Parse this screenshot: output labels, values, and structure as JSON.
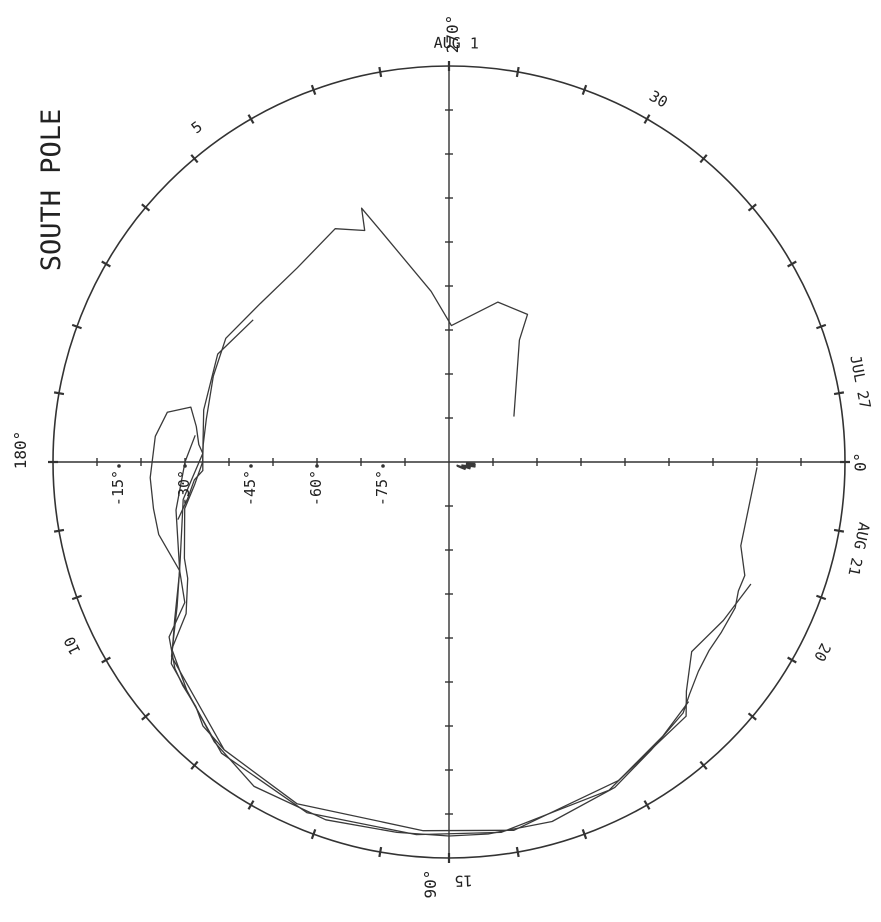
{
  "chart_data": {
    "type": "scatter",
    "title": "SOUTH POLE",
    "projection": "polar, rotated 90°",
    "longitude_labels": [
      "0°",
      "90°",
      "180°",
      "270°"
    ],
    "latitude_labels": [
      "-15°",
      "-30°",
      "-45°",
      "-60°",
      "-75°"
    ],
    "latitude_values": [
      -15,
      -30,
      -45,
      -60,
      -75
    ],
    "date_labels": [
      {
        "text": "AUG 1",
        "az": 271
      },
      {
        "text": "30",
        "az": 300
      },
      {
        "text": "JUL 27",
        "az": 349
      },
      {
        "text": "AUG 21",
        "az": 12
      },
      {
        "text": "20",
        "az": 27
      },
      {
        "text": "15",
        "az": 88
      },
      {
        "text": "10",
        "az": 154
      },
      {
        "text": "5",
        "az": 233
      }
    ],
    "tracks": [
      {
        "points": [
          [
            1,
            -20
          ],
          [
            16,
            -21
          ],
          [
            21,
            -18
          ],
          [
            24,
            -18
          ],
          [
            27,
            -17
          ],
          [
            32,
            -17
          ],
          [
            36,
            -17
          ],
          [
            40,
            -16
          ],
          [
            44,
            -14
          ],
          [
            47,
            -12
          ],
          [
            55,
            -10
          ],
          [
            63,
            -7
          ],
          [
            74,
            -5
          ],
          [
            84,
            -5
          ],
          [
            90,
            -5
          ],
          [
            98,
            -5
          ],
          [
            109,
            -4
          ],
          [
            121,
            -4
          ],
          [
            130,
            -7
          ],
          [
            139,
            -11
          ],
          [
            146,
            -14
          ],
          [
            150,
            -21
          ],
          [
            156,
            -25
          ],
          [
            160,
            -26
          ],
          [
            170,
            -29
          ],
          [
            175,
            -32
          ],
          [
            180,
            -34
          ],
          [
            184,
            -34
          ],
          [
            190,
            -34
          ],
          [
            200,
            -33
          ],
          [
            209,
            -32
          ],
          [
            220,
            -34
          ],
          [
            232,
            -34
          ],
          [
            244,
            -31
          ],
          [
            250,
            -34
          ],
          [
            251,
            -29
          ],
          [
            253,
            -34
          ],
          [
            264,
            -51
          ],
          [
            271,
            -59
          ],
          [
            287,
            -52
          ],
          [
            298,
            -52
          ],
          [
            300,
            -58
          ],
          [
            325,
            -72
          ]
        ]
      },
      {
        "points": [
          [
            128,
            -7
          ],
          [
            133,
            -8
          ],
          [
            136,
            -10
          ],
          [
            140,
            -11
          ],
          [
            143,
            -12
          ],
          [
            148,
            -15
          ],
          [
            152,
            -22
          ],
          [
            158,
            -24
          ],
          [
            166,
            -22
          ],
          [
            171,
            -22
          ],
          [
            177,
            -22
          ],
          [
            185,
            -23
          ],
          [
            190,
            -25
          ],
          [
            192,
            -30
          ],
          [
            188,
            -32
          ],
          [
            184,
            -33
          ],
          [
            182,
            -34
          ],
          [
            178,
            -34
          ],
          [
            176,
            -32
          ],
          [
            172,
            -30
          ],
          [
            168,
            -27
          ]
        ]
      },
      {
        "points": [
          [
            45,
            -13
          ],
          [
            52,
            -11
          ],
          [
            64,
            -7
          ],
          [
            82,
            -5
          ],
          [
            95,
            -5
          ],
          [
            112,
            -4
          ],
          [
            128,
            -6
          ],
          [
            144,
            -12
          ],
          [
            150,
            -18
          ],
          [
            158,
            -24
          ],
          [
            170,
            -27
          ],
          [
            180,
            -30
          ],
          [
            186,
            -32
          ]
        ]
      },
      {
        "points": [
          [
            22,
            -16
          ],
          [
            30,
            -18
          ],
          [
            38,
            -20
          ],
          [
            44,
            -15
          ],
          [
            47,
            -11
          ],
          [
            62,
            -8
          ],
          [
            80,
            -5
          ],
          [
            94,
            -6
          ],
          [
            114,
            -5
          ],
          [
            128,
            -7
          ],
          [
            145,
            -13
          ],
          [
            152,
            -20
          ],
          [
            160,
            -25
          ],
          [
            172,
            -29
          ],
          [
            182,
            -34
          ],
          [
            192,
            -33
          ],
          [
            205,
            -32
          ],
          [
            216,
            -35
          ]
        ]
      }
    ],
    "near_pole_track": {
      "points": [
        [
          3,
          -84
        ],
        [
          4,
          -86
        ],
        [
          5,
          -86
        ],
        [
          6,
          -84
        ],
        [
          7,
          -86
        ],
        [
          8,
          -86
        ],
        [
          9,
          -84
        ],
        [
          10,
          -86
        ],
        [
          11,
          -84
        ],
        [
          12,
          -86
        ],
        [
          13,
          -87
        ],
        [
          14,
          -86
        ],
        [
          15,
          -85
        ],
        [
          16,
          -86
        ],
        [
          17,
          -86
        ],
        [
          18,
          -85
        ],
        [
          19,
          -87
        ],
        [
          20,
          -86
        ],
        [
          21,
          -88
        ],
        [
          22,
          -86
        ],
        [
          23,
          -87
        ],
        [
          24,
          -88
        ],
        [
          25,
          -86
        ],
        [
          26,
          -87
        ],
        [
          27,
          -88
        ]
      ]
    }
  }
}
